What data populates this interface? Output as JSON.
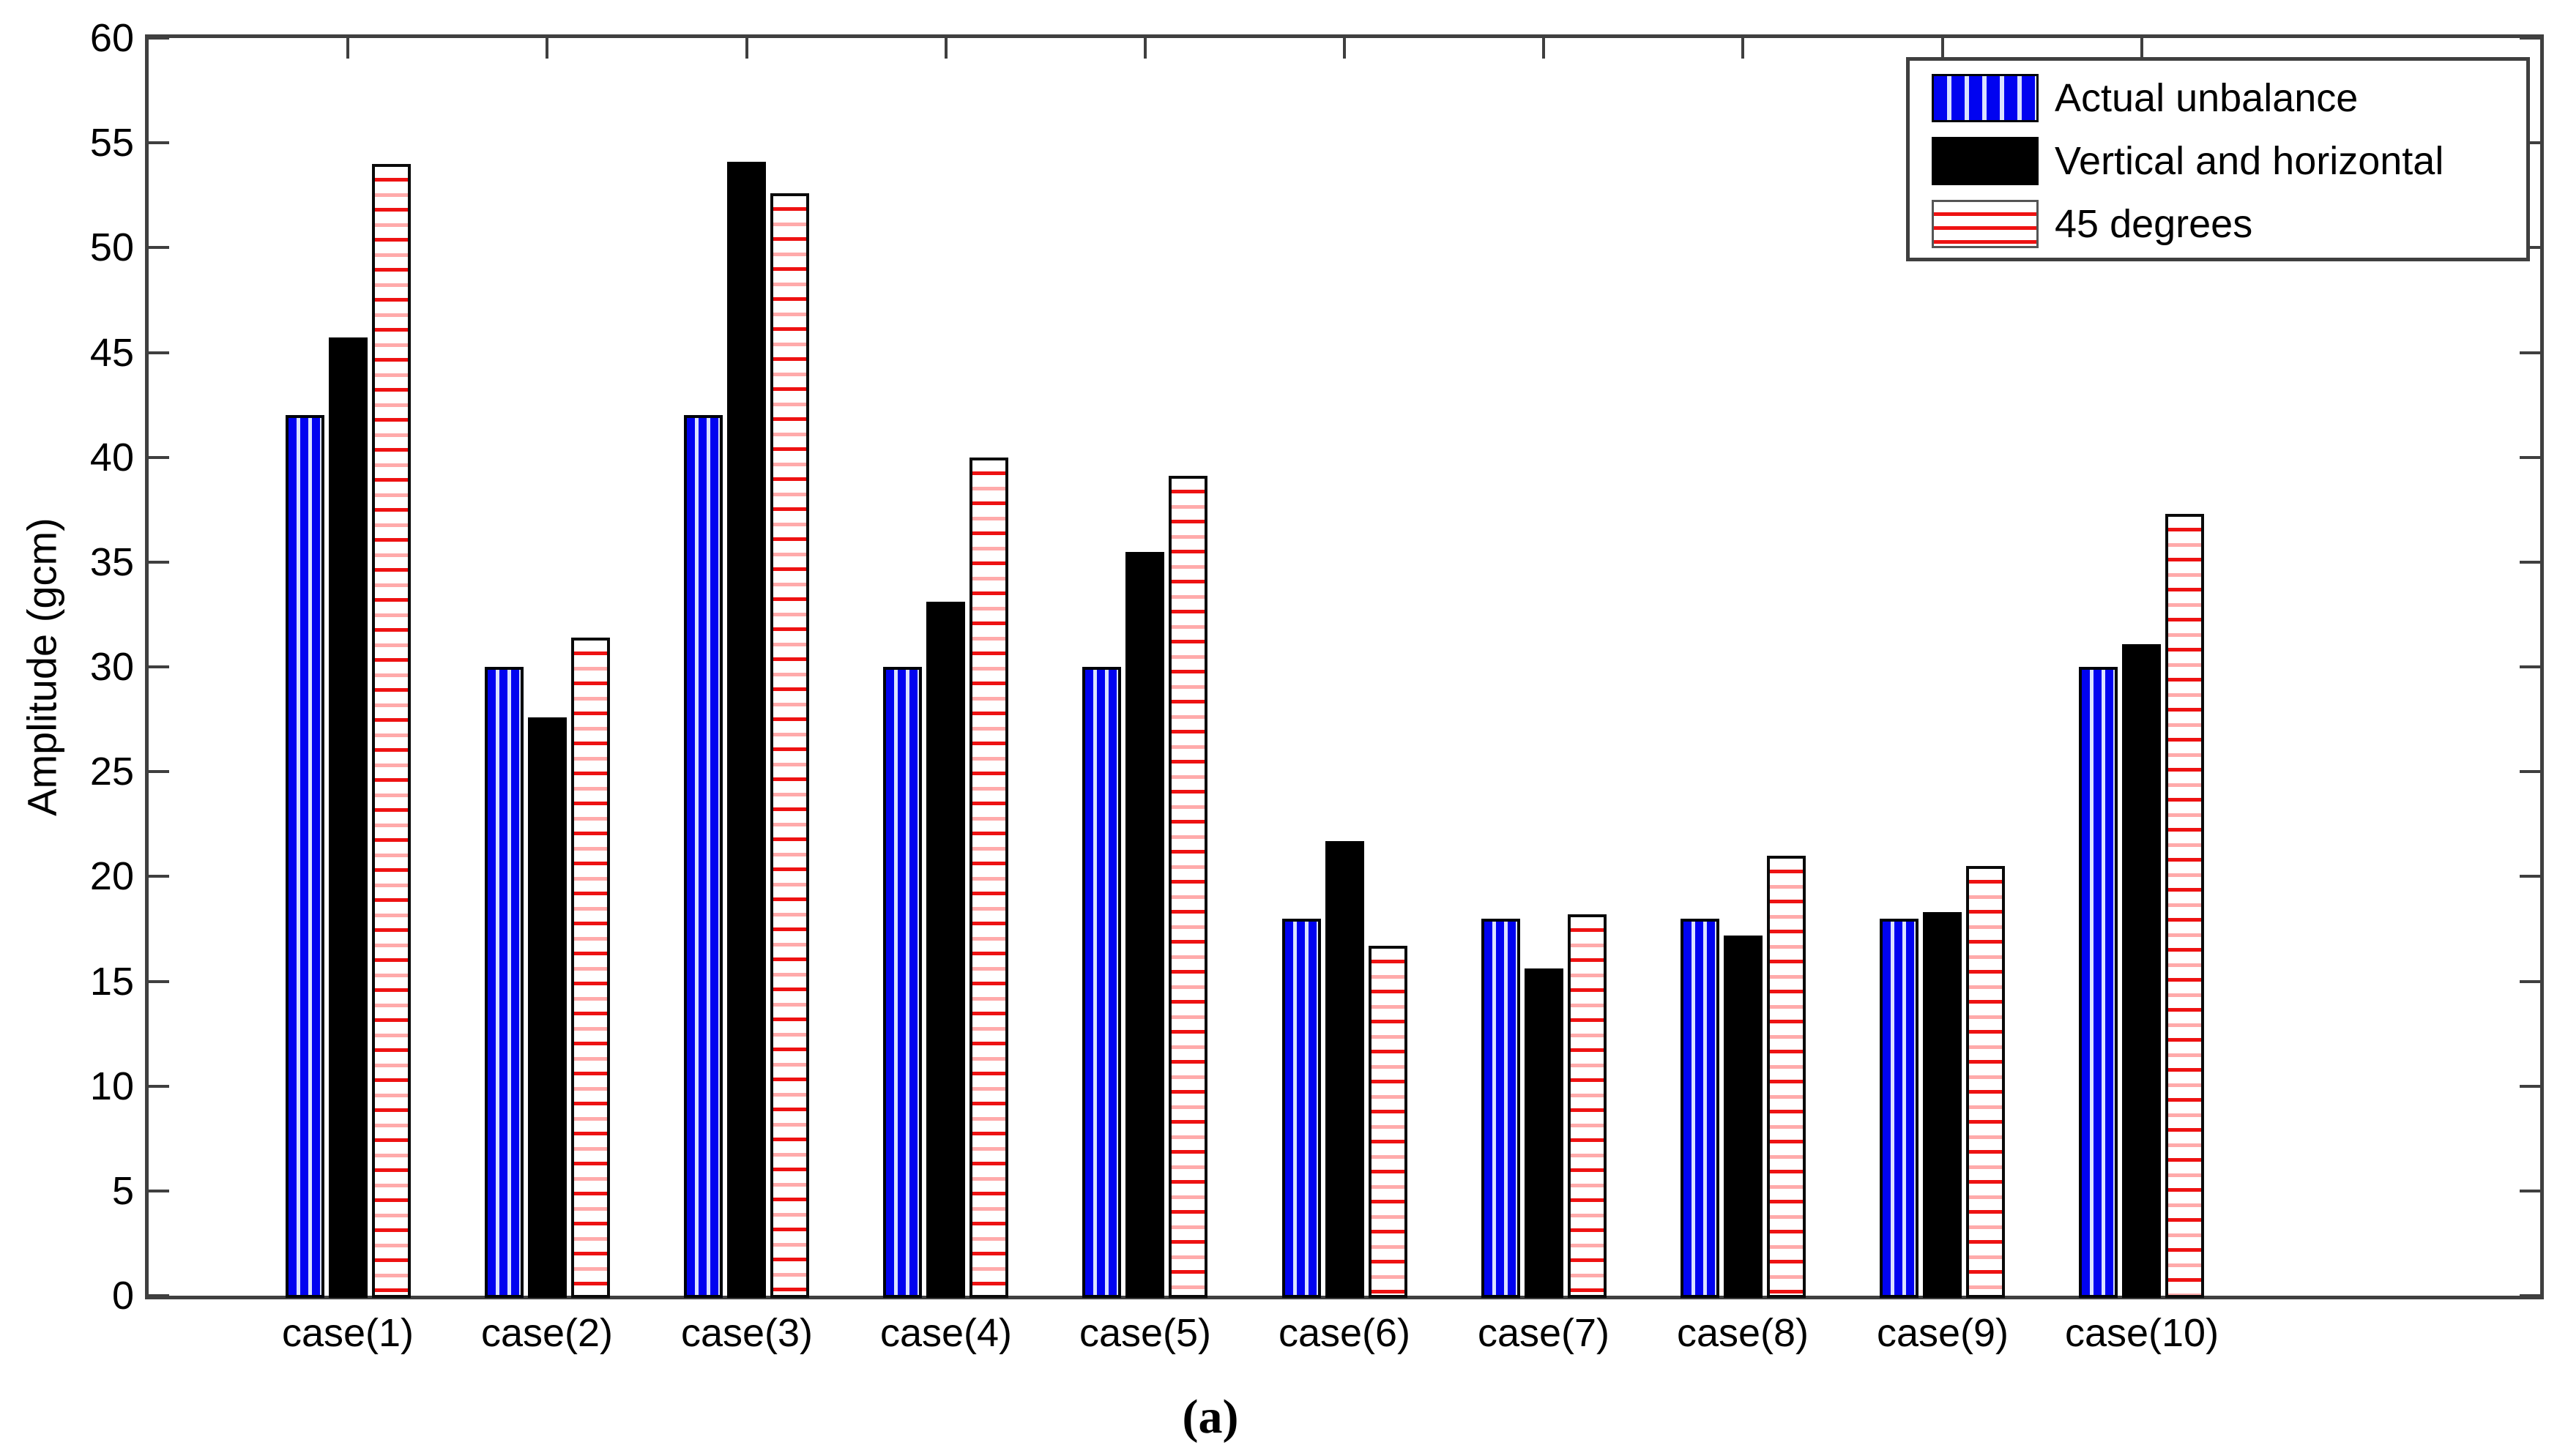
{
  "figure": {
    "caption": "(a)",
    "background": "#ffffff"
  },
  "chart_data": {
    "type": "bar",
    "title": "",
    "xlabel": "",
    "ylabel": "Amplitude (gcm)",
    "categories": [
      "case(1)",
      "case(2)",
      "case(3)",
      "case(4)",
      "case(5)",
      "case(6)",
      "case(7)",
      "case(8)",
      "case(9)",
      "case(10)"
    ],
    "series": [
      {
        "name": "Actual unbalance",
        "style": "blue-vertical-stripes",
        "values": [
          42,
          30,
          42,
          30,
          30,
          18,
          18,
          18,
          18,
          30
        ]
      },
      {
        "name": "Vertical and horizontal",
        "style": "solid-black",
        "values": [
          45.7,
          27.6,
          54.1,
          33.1,
          35.5,
          21.7,
          15.6,
          17.2,
          18.3,
          31.1
        ]
      },
      {
        "name": "45 degrees",
        "style": "red-horizontal-stripes",
        "values": [
          54,
          31.4,
          52.6,
          40,
          39.1,
          16.7,
          18.2,
          21,
          20.5,
          37.3
        ]
      }
    ],
    "ylim": [
      0,
      60
    ],
    "yticks": [
      0,
      5,
      10,
      15,
      20,
      25,
      30,
      35,
      40,
      45,
      50,
      55,
      60
    ],
    "x_axis_units": [
      0,
      12
    ],
    "grid": false,
    "legend_position": "top-right"
  },
  "colors": {
    "axis": "#3f3f3f",
    "text": "#000000",
    "blue": "#0103f0",
    "blue_stripe": "#dbe2ff",
    "black": "#000000",
    "red": "#ee1212",
    "red_pale": "#ffaaaa",
    "white": "#ffffff"
  }
}
